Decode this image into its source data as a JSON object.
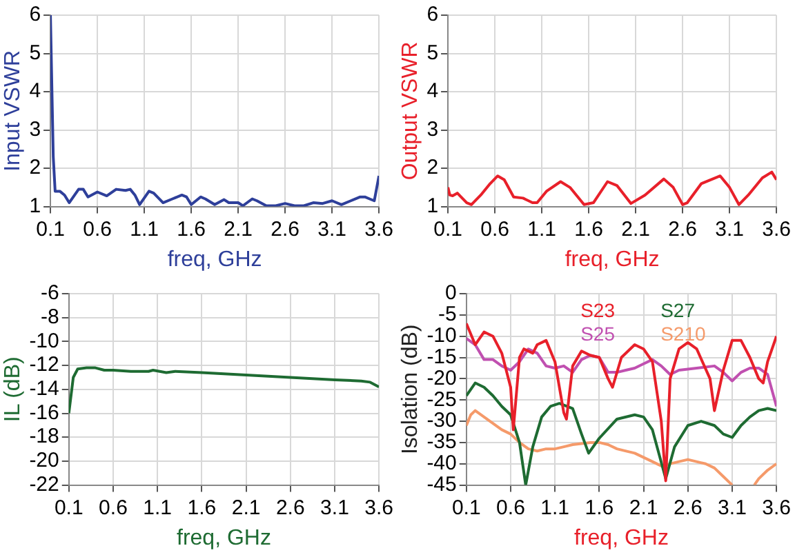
{
  "chart_data": [
    {
      "type": "line",
      "xlabel": "freq, GHz",
      "ylabel": "Input VSWR",
      "xlim": [
        0.1,
        3.6
      ],
      "xticks": [
        0.1,
        0.6,
        1.1,
        1.6,
        2.1,
        2.6,
        3.1,
        3.6
      ],
      "ylim": [
        1,
        6
      ],
      "yticks": [
        1,
        2,
        3,
        4,
        5,
        6
      ],
      "grid": true,
      "series": [
        {
          "color": "#2e3f9a",
          "x": [
            0.1,
            0.13,
            0.15,
            0.2,
            0.25,
            0.3,
            0.4,
            0.45,
            0.5,
            0.6,
            0.7,
            0.8,
            0.9,
            0.95,
            1.0,
            1.05,
            1.15,
            1.2,
            1.3,
            1.4,
            1.5,
            1.55,
            1.6,
            1.7,
            1.75,
            1.85,
            1.95,
            2.0,
            2.1,
            2.15,
            2.25,
            2.3,
            2.4,
            2.5,
            2.6,
            2.7,
            2.8,
            2.9,
            3.0,
            3.1,
            3.2,
            3.3,
            3.4,
            3.45,
            3.5,
            3.55,
            3.6
          ],
          "values": [
            6,
            2.3,
            1.4,
            1.4,
            1.3,
            1.1,
            1.45,
            1.45,
            1.25,
            1.38,
            1.28,
            1.45,
            1.42,
            1.45,
            1.3,
            1.05,
            1.4,
            1.35,
            1.1,
            1.2,
            1.3,
            1.25,
            1.05,
            1.25,
            1.2,
            1.05,
            1.18,
            1.1,
            1.1,
            1.02,
            1.2,
            1.15,
            1.02,
            1.02,
            1.08,
            1.02,
            1.02,
            1.1,
            1.08,
            1.15,
            1.05,
            1.15,
            1.25,
            1.25,
            1.2,
            1.15,
            1.8
          ]
        }
      ]
    },
    {
      "type": "line",
      "xlabel": "freq, GHz",
      "ylabel": "Output VSWR",
      "xlim": [
        0.1,
        3.6
      ],
      "xticks": [
        0.1,
        0.6,
        1.1,
        1.6,
        2.1,
        2.6,
        3.1,
        3.6
      ],
      "ylim": [
        1,
        6
      ],
      "yticks": [
        1,
        2,
        3,
        4,
        5,
        6
      ],
      "grid": true,
      "series": [
        {
          "color": "#e8202a",
          "x": [
            0.1,
            0.12,
            0.15,
            0.2,
            0.3,
            0.35,
            0.45,
            0.55,
            0.63,
            0.7,
            0.8,
            0.9,
            1.0,
            1.05,
            1.15,
            1.3,
            1.4,
            1.55,
            1.65,
            1.8,
            1.9,
            2.05,
            2.2,
            2.4,
            2.5,
            2.6,
            2.65,
            2.8,
            3.0,
            3.1,
            3.2,
            3.3,
            3.45,
            3.55,
            3.6
          ],
          "values": [
            1.5,
            1.3,
            1.28,
            1.35,
            1.1,
            1.05,
            1.3,
            1.6,
            1.8,
            1.7,
            1.25,
            1.22,
            1.1,
            1.1,
            1.4,
            1.65,
            1.5,
            1.05,
            1.1,
            1.65,
            1.55,
            1.08,
            1.3,
            1.72,
            1.5,
            1.05,
            1.1,
            1.6,
            1.8,
            1.5,
            1.05,
            1.3,
            1.75,
            1.9,
            1.7
          ]
        }
      ]
    },
    {
      "type": "line",
      "xlabel": "freq, GHz",
      "ylabel": "IL (dB)",
      "xlim": [
        0.1,
        3.6
      ],
      "xticks": [
        0.1,
        0.6,
        1.1,
        1.6,
        2.1,
        2.6,
        3.1,
        3.6
      ],
      "ylim": [
        -22,
        -6
      ],
      "yticks": [
        -22,
        -20,
        -18,
        -16,
        -14,
        -12,
        -10,
        -8,
        -6
      ],
      "grid": true,
      "series": [
        {
          "color": "#1e6b32",
          "x": [
            0.1,
            0.15,
            0.2,
            0.3,
            0.4,
            0.5,
            0.6,
            0.8,
            1.0,
            1.05,
            1.2,
            1.3,
            1.6,
            2.1,
            2.6,
            3.1,
            3.4,
            3.5,
            3.6
          ],
          "values": [
            -16,
            -13,
            -12.3,
            -12.2,
            -12.2,
            -12.4,
            -12.4,
            -12.5,
            -12.5,
            -12.4,
            -12.6,
            -12.5,
            -12.6,
            -12.8,
            -13,
            -13.2,
            -13.3,
            -13.4,
            -13.8
          ]
        }
      ]
    },
    {
      "type": "line",
      "xlabel": "freq, GHz",
      "ylabel": "Isolation (dB)",
      "xlim": [
        0.1,
        3.6
      ],
      "xticks": [
        0.1,
        0.6,
        1.1,
        1.6,
        2.1,
        2.6,
        3.1,
        3.6
      ],
      "ylim": [
        -45,
        0
      ],
      "yticks": [
        -45,
        -40,
        -35,
        -30,
        -25,
        -20,
        -15,
        -10,
        -5,
        0
      ],
      "grid": true,
      "legend": "top right",
      "series": [
        {
          "name": "S23",
          "color": "#e8202a",
          "x": [
            0.1,
            0.2,
            0.3,
            0.4,
            0.5,
            0.6,
            0.63,
            0.7,
            0.75,
            0.85,
            0.9,
            1.0,
            1.1,
            1.2,
            1.23,
            1.3,
            1.4,
            1.5,
            1.6,
            1.7,
            1.75,
            1.85,
            2.0,
            2.1,
            2.2,
            2.3,
            2.35,
            2.4,
            2.5,
            2.6,
            2.7,
            2.85,
            2.9,
            3.0,
            3.1,
            3.2,
            3.3,
            3.4,
            3.45,
            3.5,
            3.6
          ],
          "values": [
            -7,
            -12,
            -9,
            -10,
            -14,
            -22,
            -32,
            -15,
            -13,
            -14,
            -12,
            -11,
            -16,
            -28,
            -29.5,
            -17,
            -13.5,
            -14.5,
            -15,
            -20,
            -22,
            -15,
            -12,
            -13,
            -16,
            -30,
            -44,
            -20,
            -13,
            -11.5,
            -13,
            -20,
            -27.5,
            -18,
            -11,
            -11,
            -15,
            -20,
            -21,
            -16,
            -10
          ]
        },
        {
          "name": "S27",
          "color": "#1e6b32",
          "x": [
            0.1,
            0.2,
            0.3,
            0.4,
            0.5,
            0.6,
            0.7,
            0.77,
            0.85,
            0.95,
            1.05,
            1.15,
            1.3,
            1.4,
            1.48,
            1.6,
            1.8,
            2.0,
            2.1,
            2.2,
            2.35,
            2.45,
            2.6,
            2.75,
            2.9,
            3.0,
            3.1,
            3.2,
            3.3,
            3.4,
            3.5,
            3.6
          ],
          "values": [
            -24,
            -21,
            -22,
            -24,
            -26.5,
            -28.5,
            -35,
            -45,
            -36,
            -29,
            -26.5,
            -25.8,
            -27,
            -33,
            -37.5,
            -34,
            -29.5,
            -28.5,
            -29,
            -32,
            -43.5,
            -36,
            -31,
            -30,
            -31,
            -33,
            -33.8,
            -31,
            -29,
            -27.5,
            -27,
            -27.5
          ]
        },
        {
          "name": "S25",
          "color": "#c050b0",
          "x": [
            0.1,
            0.2,
            0.3,
            0.4,
            0.5,
            0.6,
            0.7,
            0.8,
            0.9,
            1.0,
            1.1,
            1.2,
            1.3,
            1.4,
            1.5,
            1.6,
            1.7,
            1.8,
            1.9,
            2.0,
            2.1,
            2.2,
            2.3,
            2.4,
            2.5,
            2.7,
            2.9,
            3.0,
            3.1,
            3.2,
            3.3,
            3.4,
            3.5,
            3.6
          ],
          "values": [
            -10.5,
            -12,
            -15.5,
            -15.5,
            -17,
            -18,
            -16,
            -13,
            -14,
            -17,
            -17.5,
            -17,
            -18.5,
            -15.5,
            -14.5,
            -15,
            -18.5,
            -18.5,
            -18,
            -17.5,
            -16.5,
            -15.5,
            -17,
            -19,
            -18,
            -17.5,
            -17,
            -18.5,
            -20.5,
            -18.5,
            -17.5,
            -17.5,
            -19,
            -26.5
          ]
        },
        {
          "name": "S210",
          "color": "#f59a6a",
          "x": [
            0.1,
            0.15,
            0.2,
            0.3,
            0.4,
            0.5,
            0.6,
            0.7,
            0.8,
            0.9,
            1.0,
            1.1,
            1.2,
            1.3,
            1.5,
            1.6,
            1.7,
            1.8,
            2.0,
            2.2,
            2.3,
            2.5,
            2.6,
            2.8,
            2.9,
            3.0,
            3.1,
            3.2,
            3.35,
            3.4,
            3.5,
            3.6
          ],
          "values": [
            -31,
            -28.5,
            -27.5,
            -29,
            -30.5,
            -32,
            -33,
            -35,
            -36.5,
            -37,
            -36.5,
            -36.5,
            -36,
            -35.5,
            -35,
            -35,
            -35.5,
            -36.5,
            -37.5,
            -39.5,
            -40.5,
            -39.5,
            -39,
            -40,
            -41,
            -43,
            -45,
            null,
            -45,
            -43.5,
            -41.5,
            -40
          ]
        }
      ]
    }
  ]
}
